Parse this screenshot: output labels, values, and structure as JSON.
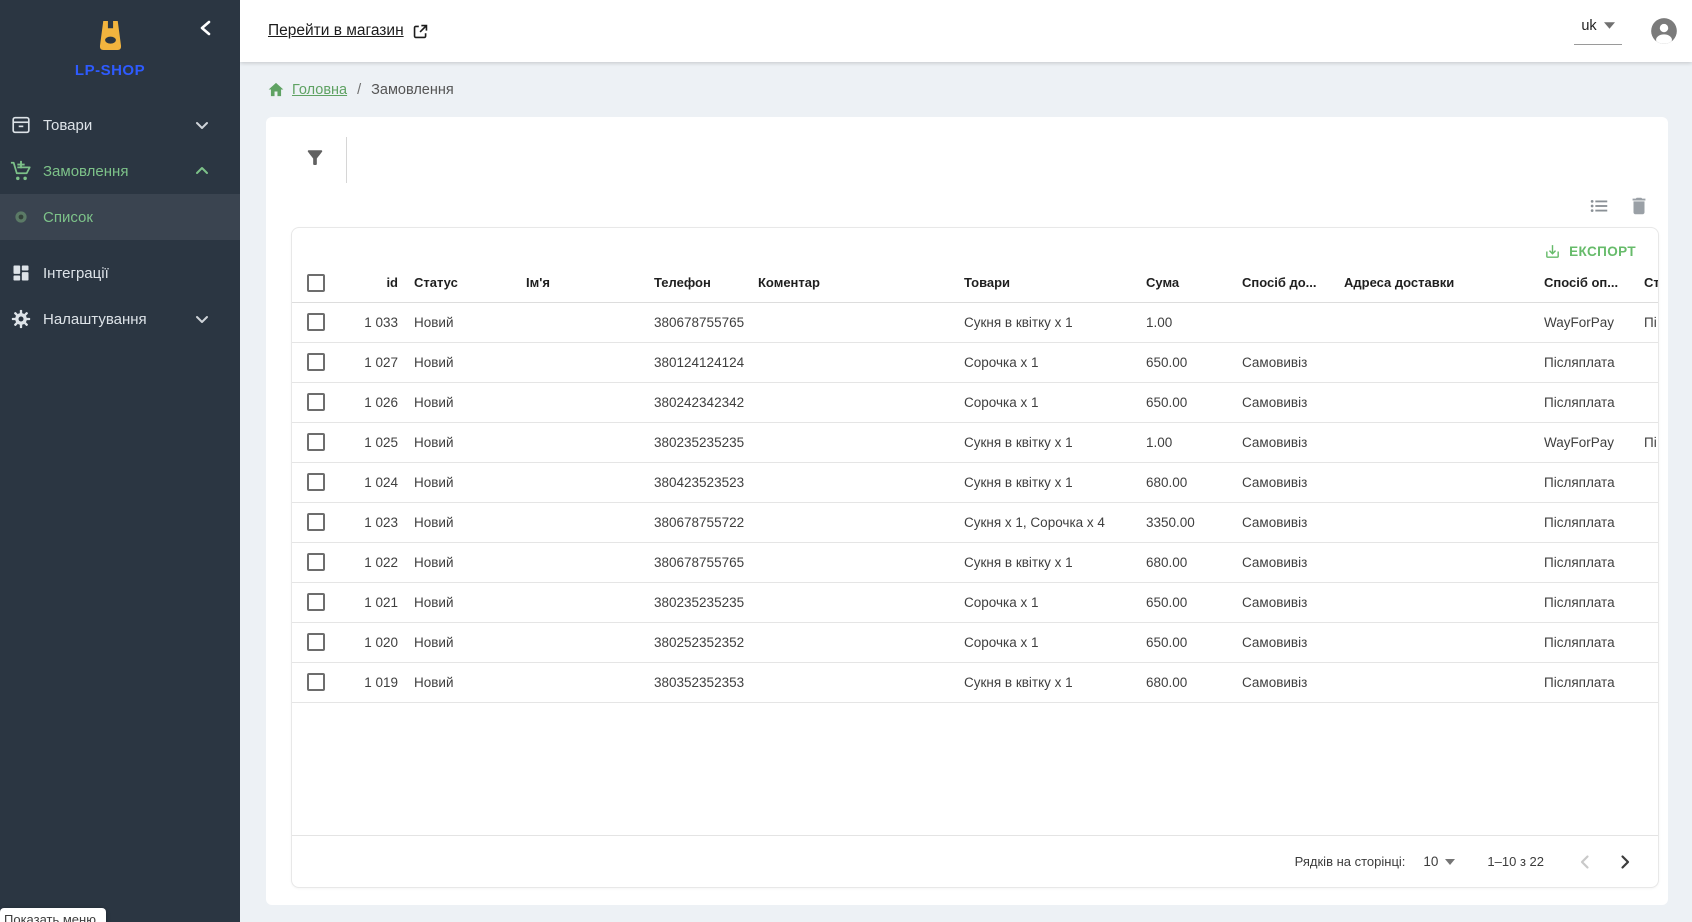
{
  "sidebar": {
    "logo": "LP-SHOP",
    "menu": [
      {
        "label": "Товари",
        "icon": "box-icon",
        "chevron": "down"
      },
      {
        "label": "Замовлення",
        "icon": "cart-plus-icon",
        "chevron": "up"
      },
      {
        "label": "Список",
        "icon": "bullet-icon",
        "active": true
      },
      {
        "label": "Інтеграції",
        "icon": "integrations-icon"
      },
      {
        "label": "Налаштування",
        "icon": "settings-icon",
        "chevron": "down"
      }
    ],
    "tooltip": "Показать меню"
  },
  "topbar": {
    "store_link_label": "Перейти в магазин",
    "language": "uk"
  },
  "breadcrumb": {
    "home_label": "Головна",
    "separator": "/",
    "current": "Замовлення"
  },
  "table": {
    "export_label": "ЕКСПОРТ",
    "columns": [
      "id",
      "Статус",
      "Ім'я",
      "Телефон",
      "Коментар",
      "Товари",
      "Сума",
      "Спосіб до...",
      "Адреса доставки",
      "Спосіб оп...",
      "Ст"
    ],
    "rows": [
      {
        "id": "1 033",
        "status": "Новий",
        "name": "",
        "phone": "380678755765",
        "comment": "",
        "products": "Сукня в квітку х 1",
        "sum": "1.00",
        "delivery": "",
        "address": "",
        "payment": "WayForPay",
        "payment_status": "Пі"
      },
      {
        "id": "1 027",
        "status": "Новий",
        "name": "",
        "phone": "380124124124",
        "comment": "",
        "products": "Сорочка х 1",
        "sum": "650.00",
        "delivery": "Самовивіз",
        "address": "",
        "payment": "Післяплата",
        "payment_status": ""
      },
      {
        "id": "1 026",
        "status": "Новий",
        "name": "",
        "phone": "380242342342",
        "comment": "",
        "products": "Сорочка х 1",
        "sum": "650.00",
        "delivery": "Самовивіз",
        "address": "",
        "payment": "Післяплата",
        "payment_status": ""
      },
      {
        "id": "1 025",
        "status": "Новий",
        "name": "",
        "phone": "380235235235",
        "comment": "",
        "products": "Сукня в квітку х 1",
        "sum": "1.00",
        "delivery": "Самовивіз",
        "address": "",
        "payment": "WayForPay",
        "payment_status": "Пі"
      },
      {
        "id": "1 024",
        "status": "Новий",
        "name": "",
        "phone": "380423523523",
        "comment": "",
        "products": "Сукня в квітку х 1",
        "sum": "680.00",
        "delivery": "Самовивіз",
        "address": "",
        "payment": "Післяплата",
        "payment_status": ""
      },
      {
        "id": "1 023",
        "status": "Новий",
        "name": "",
        "phone": "380678755722",
        "comment": "",
        "products": "Сукня х 1, Сорочка х 4",
        "sum": "3350.00",
        "delivery": "Самовивіз",
        "address": "",
        "payment": "Післяплата",
        "payment_status": ""
      },
      {
        "id": "1 022",
        "status": "Новий",
        "name": "",
        "phone": "380678755765",
        "comment": "",
        "products": "Сукня в квітку х 1",
        "sum": "680.00",
        "delivery": "Самовивіз",
        "address": "",
        "payment": "Післяплата",
        "payment_status": ""
      },
      {
        "id": "1 021",
        "status": "Новий",
        "name": "",
        "phone": "380235235235",
        "comment": "",
        "products": "Сорочка х 1",
        "sum": "650.00",
        "delivery": "Самовивіз",
        "address": "",
        "payment": "Післяплата",
        "payment_status": ""
      },
      {
        "id": "1 020",
        "status": "Новий",
        "name": "",
        "phone": "380252352352",
        "comment": "",
        "products": "Сорочка х 1",
        "sum": "650.00",
        "delivery": "Самовивіз",
        "address": "",
        "payment": "Післяплата",
        "payment_status": ""
      },
      {
        "id": "1 019",
        "status": "Новий",
        "name": "",
        "phone": "380352352353",
        "comment": "",
        "products": "Сукня в квітку х 1",
        "sum": "680.00",
        "delivery": "Самовивіз",
        "address": "",
        "payment": "Післяплата",
        "payment_status": ""
      }
    ],
    "pagination": {
      "label": "Рядків на сторінці:",
      "per_page": "10",
      "range": "1–10 з 22"
    }
  },
  "colors": {
    "sidebar_bg": "#2b3642",
    "sidebar_green": "#7dc289",
    "breadcrumb_green": "#5fa263",
    "accent_green": "#66bb6a",
    "logo_blue": "#2e5bff",
    "logo_amber": "#f2b43e"
  }
}
